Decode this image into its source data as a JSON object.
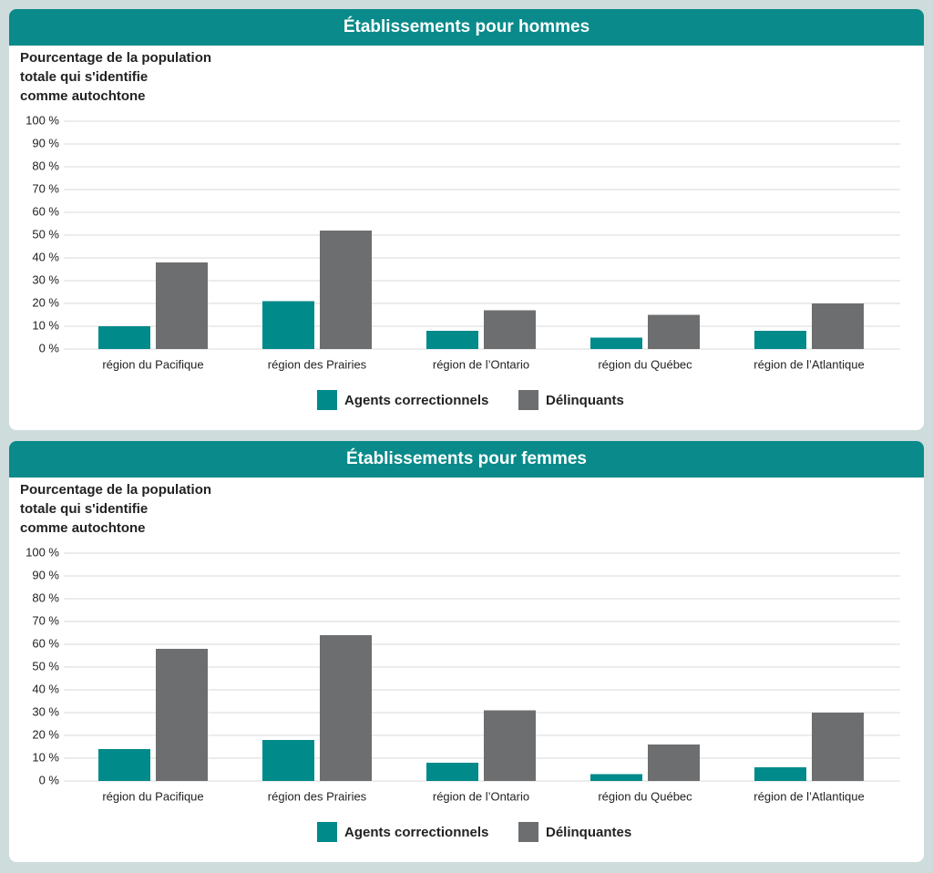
{
  "chart_data": [
    {
      "type": "bar",
      "title": "Établissements pour hommes",
      "y_label": [
        "Pourcentage de la population",
        "totale qui s'identifie",
        "comme autochtone"
      ],
      "categories": [
        "région du Pacifique",
        "région des Prairies",
        "région de l’Ontario",
        "région du Québec",
        "région de l’Atlantique"
      ],
      "series": [
        {
          "name": "Agents correctionnels",
          "color": "#008a8a",
          "values": [
            10,
            21,
            8,
            5,
            8
          ]
        },
        {
          "name": "Délinquants",
          "color": "#6d6e70",
          "values": [
            38,
            52,
            17,
            15,
            20
          ]
        }
      ],
      "ylim": [
        0,
        100
      ],
      "yticks": [
        {
          "value": 0,
          "label": "0 %"
        },
        {
          "value": 10,
          "label": "10 %"
        },
        {
          "value": 20,
          "label": "20 %"
        },
        {
          "value": 30,
          "label": "30 %"
        },
        {
          "value": 40,
          "label": "40 %"
        },
        {
          "value": 50,
          "label": "50 %"
        },
        {
          "value": 60,
          "label": "60 %"
        },
        {
          "value": 70,
          "label": "70 %"
        },
        {
          "value": 80,
          "label": "80 %"
        },
        {
          "value": 90,
          "label": "90 %"
        },
        {
          "value": 100,
          "label": "100 %"
        }
      ],
      "grid": true
    },
    {
      "type": "bar",
      "title": "Établissements pour femmes",
      "y_label": [
        "Pourcentage de la population",
        "totale qui s'identifie",
        "comme autochtone"
      ],
      "categories": [
        "région du Pacifique",
        "région des Prairies",
        "région de l’Ontario",
        "région du Québec",
        "région de l’Atlantique"
      ],
      "series": [
        {
          "name": "Agents correctionnels",
          "color": "#008a8a",
          "values": [
            14,
            18,
            8,
            3,
            6
          ]
        },
        {
          "name": "Délinquantes",
          "color": "#6d6e70",
          "values": [
            58,
            64,
            31,
            16,
            30
          ]
        }
      ],
      "ylim": [
        0,
        100
      ],
      "yticks": [
        {
          "value": 0,
          "label": "0 %"
        },
        {
          "value": 10,
          "label": "10 %"
        },
        {
          "value": 20,
          "label": "20 %"
        },
        {
          "value": 30,
          "label": "30 %"
        },
        {
          "value": 40,
          "label": "40 %"
        },
        {
          "value": 50,
          "label": "50 %"
        },
        {
          "value": 60,
          "label": "60 %"
        },
        {
          "value": 70,
          "label": "70 %"
        },
        {
          "value": 80,
          "label": "80 %"
        },
        {
          "value": 90,
          "label": "90 %"
        },
        {
          "value": 100,
          "label": "100 %"
        }
      ],
      "grid": true
    }
  ]
}
